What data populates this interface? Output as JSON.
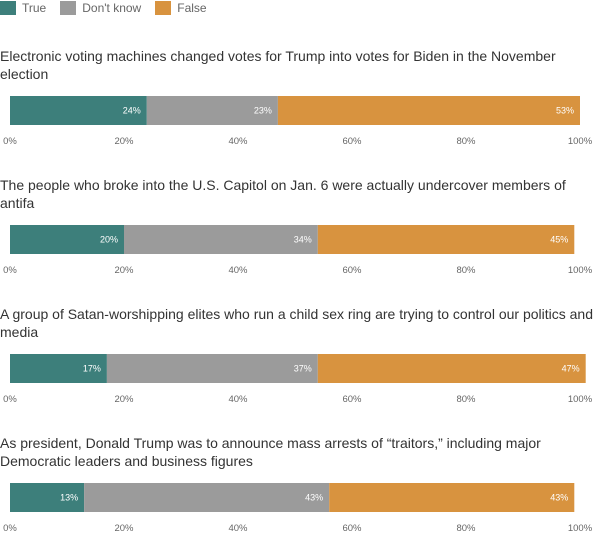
{
  "legend": [
    {
      "label": "True",
      "color": "#3d7f7b"
    },
    {
      "label": "Don't know",
      "color": "#9b9b9b"
    },
    {
      "label": "False",
      "color": "#d8933f"
    }
  ],
  "chart_data": {
    "type": "bar",
    "orientation": "horizontal-stacked",
    "series_names": [
      "True",
      "Don't know",
      "False"
    ],
    "colors": [
      "#3d7f7b",
      "#9b9b9b",
      "#d8933f"
    ],
    "xlim": [
      0,
      100
    ],
    "ticks": [
      "0%",
      "20%",
      "40%",
      "60%",
      "80%",
      "100%"
    ],
    "grid": false,
    "legend_position": "top-left",
    "panels": [
      {
        "question": "Electronic voting machines changed votes for Trump into votes for Biden in the November election",
        "values": [
          24,
          23,
          53
        ],
        "labels": [
          "24%",
          "23%",
          "53%"
        ]
      },
      {
        "question": "The people who broke into the U.S. Capitol on Jan. 6 were actually undercover members of antifa",
        "values": [
          20,
          34,
          45
        ],
        "labels": [
          "20%",
          "34%",
          "45%"
        ]
      },
      {
        "question": "A group of Satan-worshipping elites who run a child sex ring are trying to control our politics and media",
        "values": [
          17,
          37,
          47
        ],
        "labels": [
          "17%",
          "37%",
          "47%"
        ]
      },
      {
        "question": "As president, Donald Trump was to announce mass arrests of “traitors,” including major Democratic leaders and business figures",
        "values": [
          13,
          43,
          43
        ],
        "labels": [
          "13%",
          "43%",
          "43%"
        ]
      }
    ]
  }
}
